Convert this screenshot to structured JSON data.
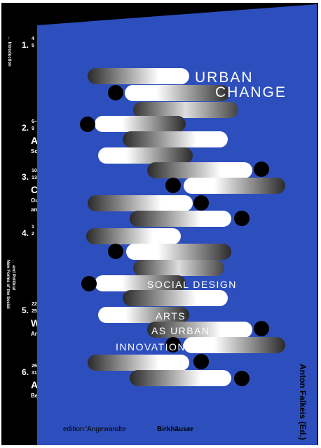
{
  "cover": {
    "title_lines": [
      "URBAN",
      "CHANGE"
    ],
    "subtitle_lines": [
      "SOCIAL DESIGN",
      "ARTS",
      "AS URBAN",
      "INNOVATION"
    ],
    "author": "Anton Falkeis (Ed.)",
    "publishers": [
      "edition:'Angewandte",
      "Birkhäuser"
    ]
  },
  "spine": {
    "labels": [
      "← Introduction",
      "New Forms of the Social",
      "← and Political"
    ],
    "sections": [
      {
        "number": "1.",
        "pages": [
          "4",
          "5"
        ],
        "lines": []
      },
      {
        "number": "2.",
        "pages": [
          "6—",
          "9"
        ],
        "lines": [
          "A",
          "Sc"
        ]
      },
      {
        "number": "3.",
        "pages": [
          "10—",
          "13"
        ],
        "lines": [
          "C",
          "Ou",
          "an"
        ]
      },
      {
        "number": "4.",
        "pages": [
          "1",
          "2"
        ],
        "lines": []
      },
      {
        "number": "5.",
        "pages": [
          "22—",
          "25"
        ],
        "lines": [
          "W",
          "Ar"
        ]
      },
      {
        "number": "6.",
        "pages": [
          "26—",
          "31"
        ],
        "lines": [
          "A",
          "Be"
        ]
      }
    ]
  }
}
